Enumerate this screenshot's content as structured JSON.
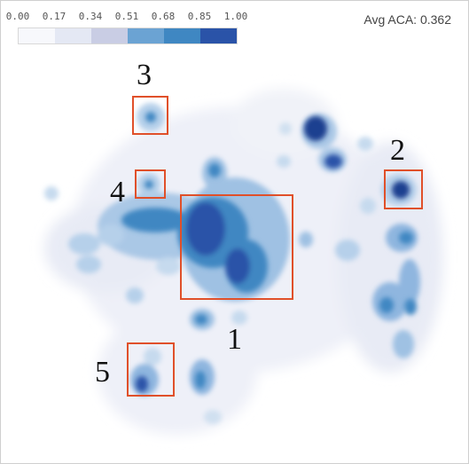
{
  "legend": {
    "ticks": [
      "0.00",
      "0.17",
      "0.34",
      "0.51",
      "0.68",
      "0.85",
      "1.00"
    ],
    "colors": [
      "#f7f8fc",
      "#e4e8f4",
      "#c9cde4",
      "#6ba3d3",
      "#3f87c2",
      "#2a53a8"
    ]
  },
  "metric": {
    "label": "Avg ACA: 0.362"
  },
  "chart_data": {
    "type": "heatmap",
    "title": "",
    "value_range": [
      0,
      1
    ],
    "colorbar_ticks": [
      0.0,
      0.17,
      0.34,
      0.51,
      0.68,
      0.85,
      1.0
    ],
    "regions": [
      {
        "label": "1",
        "intensity": 1.0
      },
      {
        "label": "2",
        "intensity": 0.95
      },
      {
        "label": "3",
        "intensity": 0.6
      },
      {
        "label": "4",
        "intensity": 0.6
      },
      {
        "label": "5",
        "intensity": 0.85
      }
    ]
  }
}
